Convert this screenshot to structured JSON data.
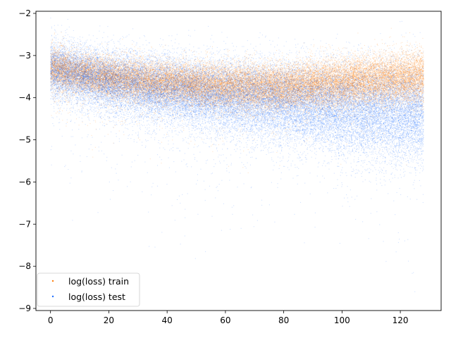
{
  "chart_data": {
    "type": "scatter",
    "title": "",
    "xlabel": "",
    "ylabel": "",
    "xlim": [
      -5,
      134
    ],
    "ylim": [
      -9.05,
      -1.95
    ],
    "x_ticks": [
      0,
      20,
      40,
      60,
      80,
      100,
      120
    ],
    "y_ticks": [
      -9,
      -8,
      -7,
      -6,
      -5,
      -4,
      -3,
      -2
    ],
    "x_tick_labels": [
      "0",
      "20",
      "40",
      "60",
      "80",
      "100",
      "120"
    ],
    "y_tick_labels": [
      "−9",
      "−8",
      "−7",
      "−6",
      "−5",
      "−4",
      "−3",
      "−2"
    ],
    "grid": false,
    "legend_position": "lower-left",
    "point_count_per_series": 34000,
    "series": [
      {
        "name": "log(loss) train",
        "color": "#ff7f0e",
        "x_range": [
          0,
          128
        ],
        "mean_trend": [
          [
            0,
            -3.3
          ],
          [
            20,
            -3.52
          ],
          [
            40,
            -3.65
          ],
          [
            60,
            -3.74
          ],
          [
            80,
            -3.75
          ],
          [
            100,
            -3.64
          ],
          [
            128,
            -3.5
          ]
        ],
        "spread_std": 0.22
      },
      {
        "name": "log(loss) test",
        "color": "#1f6fff",
        "x_range": [
          0,
          128
        ],
        "mean_trend": [
          [
            0,
            -3.35
          ],
          [
            20,
            -3.6
          ],
          [
            40,
            -3.82
          ],
          [
            60,
            -3.97
          ],
          [
            80,
            -4.1
          ],
          [
            100,
            -4.25
          ],
          [
            128,
            -4.4
          ]
        ],
        "spread_std": 0.32
      }
    ]
  }
}
